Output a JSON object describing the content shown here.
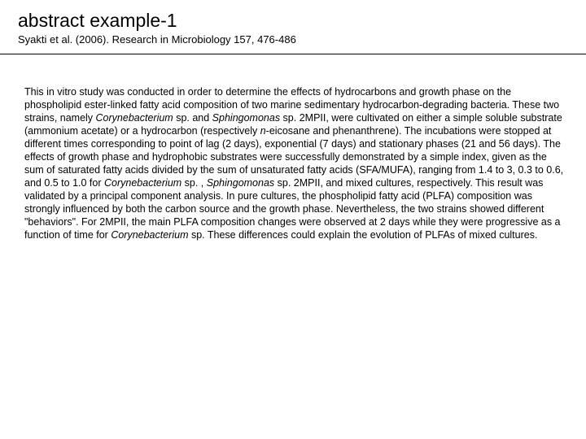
{
  "header": {
    "title": "abstract example-1",
    "subtitle": "Syakti et al. (2006). Research in Microbiology 157, 476-486"
  },
  "abstract": {
    "p1_a": "This in vitro study was conducted in order to determine the effects of hydrocarbons and growth phase on the phospholipid ester-linked fatty acid composition of two marine sedimentary hydrocarbon-degrading bacteria. These two strains, namely ",
    "sp1": "Corynebacterium",
    "p1_b": " sp. and ",
    "sp2": "Sphingomonas",
    "p1_c": " sp. 2MPII, were cultivated on either a simple soluble substrate (ammonium acetate) or a hydrocarbon (respectively ",
    "sp3": "n",
    "p1_d": "-eicosane and phenanthrene). The incubations were stopped at different times corresponding to point of lag (2 days), exponential (7 days) and stationary phases (21 and 56 days). The effects of growth phase and hydrophobic substrates were successfully demonstrated by a simple index, given as the sum of saturated fatty acids divided by the sum of unsaturated fatty acids (SFA/MUFA), ranging from 1.4 to 3, 0.3 to 0.6, and 0.5 to 1.0 for ",
    "sp4": "Corynebacterium",
    "p1_e": " sp. , ",
    "sp5": "Sphingomonas",
    "p1_f": " sp. 2MPII, and mixed cultures, respectively. This result was validated by a principal component analysis. In pure cultures, the phospholipid fatty acid (PLFA) composition was strongly influenced by both the carbon source and the growth phase. Nevertheless, the two strains showed different \"behaviors\". For 2MPII, the main PLFA composition changes were observed at 2 days while they were progressive as a function of time for ",
    "sp6": "Corynebacterium",
    "p1_g": " sp. These differences could explain the evolution of PLFAs of mixed cultures."
  },
  "colors": {
    "background": "#ffffff",
    "text": "#000000",
    "divider": "#000000"
  },
  "typography": {
    "title_fontsize": 23,
    "subtitle_fontsize": 13,
    "body_fontsize": 12.5,
    "font_family": "Verdana"
  }
}
